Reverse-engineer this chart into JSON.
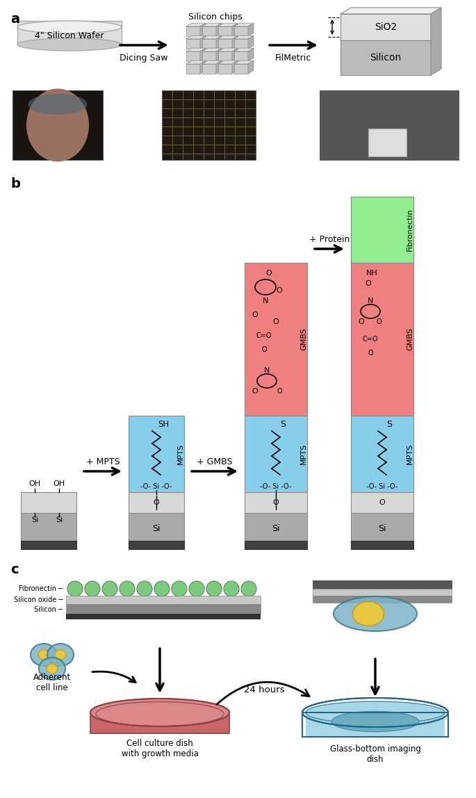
{
  "panel_a_label": "a",
  "panel_b_label": "b",
  "panel_c_label": "c",
  "panel_a_title1": "4\" Silicon Wafer",
  "panel_a_label1": "Dicing Saw",
  "panel_a_title2": "Silicon chips",
  "panel_a_label2": "FilMetric",
  "panel_a_title3_1": "SiO2",
  "panel_a_title3_2": "Silicon",
  "panel_b_mpts_arrow": "+ MPTS",
  "panel_b_gmbs_arrow": "+ GMBS",
  "panel_b_protein_arrow": "+ Protein",
  "panel_b_fibronectin": "Fibronectin",
  "panel_b_gmbs": "GMBS",
  "panel_b_mpts": "MPTS",
  "panel_b_oh": "OH",
  "panel_b_si_si": "Si     Si",
  "panel_b_o_si_o": "-O- Si -O-",
  "panel_b_o": "O",
  "panel_b_si": "Si",
  "panel_b_sh": "SH",
  "panel_b_s": "S",
  "panel_b_nh": "NH",
  "color_blue": "#87CEEB",
  "color_pink": "#F08080",
  "color_green": "#90EE90",
  "color_lightgray": "#D3D3D3",
  "color_darkgray": "#999999",
  "color_verydarkgray": "#555555",
  "color_darkest": "#333333",
  "color_white": "#FFFFFF",
  "color_black": "#000000",
  "bg_color": "#FFFFFF",
  "panel_c_fibronectin": "Fibronectin",
  "panel_c_sio2": "Silicon oxide",
  "panel_c_silicon": "Silicon",
  "panel_c_adherent": "Adherent\ncell line",
  "panel_c_culture": "Cell culture dish\nwith growth media",
  "panel_c_imaging": "Glass-bottom imaging\ndish",
  "panel_c_24h": "24 hours"
}
